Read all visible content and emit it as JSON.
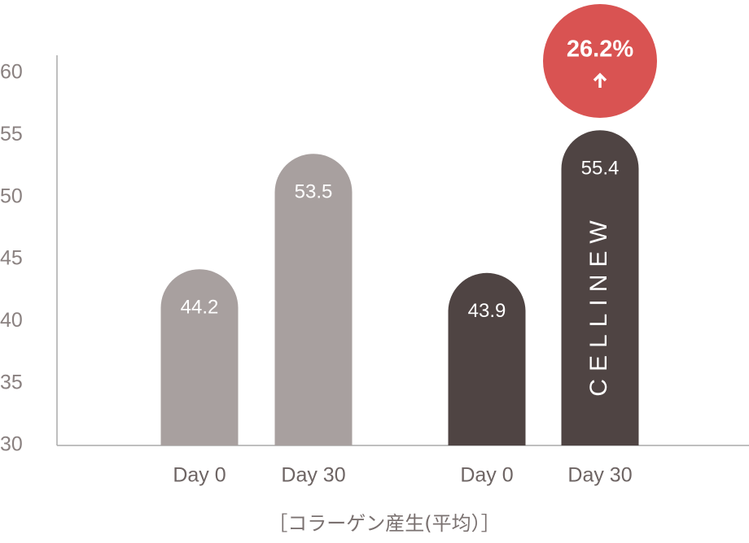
{
  "chart_data": {
    "type": "bar",
    "caption": "［コラーゲン産生(平均）］",
    "brand": "CELLINEW",
    "badge": "26.2%",
    "ylim": [
      30,
      60
    ],
    "yticks": [
      30,
      35,
      40,
      45,
      50,
      55,
      60
    ],
    "series": [
      {
        "color": "#a8a09f",
        "categories": [
          "Day 0",
          "Day 30"
        ],
        "values": [
          44.2,
          53.5
        ]
      },
      {
        "color": "#4f4443",
        "categories": [
          "Day 0",
          "Day 30"
        ],
        "values": [
          43.9,
          55.4
        ]
      }
    ]
  }
}
